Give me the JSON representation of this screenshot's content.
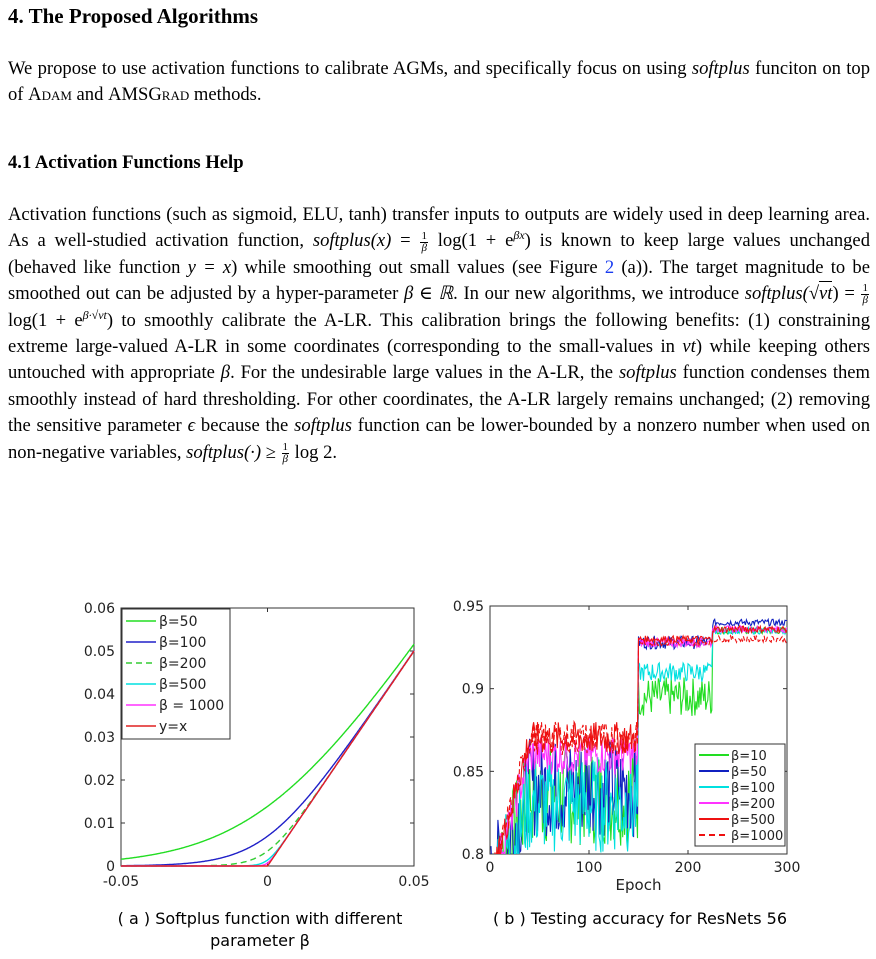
{
  "section": {
    "heading": "4. The Proposed Algorithms",
    "intro": {
      "p1": "We propose to use activation functions to calibrate AGMs, and specifically focus on using",
      "softplus": "softplus",
      "p2": " funciton on top of ",
      "adam": "Adam",
      "p3": " and ",
      "amsgrad": "AMSGrad",
      "p4": " methods."
    }
  },
  "subsection": {
    "heading": "4.1 Activation Functions Help",
    "body": {
      "s1": "Activation functions (such as sigmoid, ELU, tanh) transfer inputs to outputs are widely used in deep learning area. As a well-studied activation function, ",
      "softplus_x": "softplus(x)",
      "eq1": " = ",
      "log1": " log(1 + e",
      "beta_x": "βx",
      "s2": ") is known to keep large values unchanged (behaved like function ",
      "y_eq_x": "y = x",
      "s3": ") while smoothing out small values (see Figure ",
      "fig_ref": "2",
      "s4": " (a)). The target magnitude to be smoothed out can be adjusted by a hyper-parameter ",
      "beta_in_R": "β ∈ ℝ",
      "s5": ". In our new algorithms, we introduce ",
      "softplus_sqrt": "softplus(",
      "vt": "vt",
      "s6": ") = ",
      "log2": " log(1 + e",
      "beta_sqrt": "β·√vt",
      "s7": ") to smoothly calibrate the A-LR. This calibration brings the following benefits: (1) constraining extreme large-valued A-LR in some coordinates (corresponding to the small-values in ",
      "vt2": "vt",
      "s8": ") while keeping others untouched with appropriate ",
      "beta": "β",
      "s9": ". For the undesirable large values in the A-LR, the ",
      "softplus_word": "softplus",
      "s10": " function condenses them smoothly instead of hard thresholding. For other coordinates, the A-LR largely remains unchanged; (2) removing the sensitive parameter ",
      "epsilon": "ϵ",
      "s11": " because the ",
      "softplus_word2": "softplus",
      "s12": " function can be lower-bounded by a nonzero number when used on non-negative variables, ",
      "softplus_dot": "softplus(·) ≥ ",
      "log3": " log 2.",
      "frac_num": "1",
      "frac_den": "β"
    }
  },
  "figure_a": {
    "caption_line1": "( a ) Softplus function with different",
    "caption_line2": "parameter β",
    "chart_data": {
      "type": "line",
      "xlim": [
        -0.05,
        0.05
      ],
      "ylim": [
        0,
        0.06
      ],
      "x_ticks": [
        "-0.05",
        "0",
        "0.05"
      ],
      "y_ticks": [
        "0",
        "0.01",
        "0.02",
        "0.03",
        "0.04",
        "0.05",
        "0.06"
      ],
      "legend_position": "top-left",
      "grid": false,
      "series": [
        {
          "name": "β=50",
          "beta": 50,
          "color": "#22dd22",
          "dash": "solid"
        },
        {
          "name": "β=100",
          "beta": 100,
          "color": "#2020c8",
          "dash": "solid"
        },
        {
          "name": "β=200",
          "beta": 200,
          "color": "#33cc33",
          "dash": "dashed"
        },
        {
          "name": "β=500",
          "beta": 500,
          "color": "#00e0e0",
          "dash": "solid"
        },
        {
          "name": "β = 1000",
          "beta": 1000,
          "color": "#ff33ff",
          "dash": "solid"
        },
        {
          "name": "y=x",
          "beta": null,
          "color": "#e02020",
          "dash": "solid"
        }
      ]
    }
  },
  "figure_b": {
    "caption": "( b ) Testing accuracy for ResNets 56",
    "chart_data": {
      "type": "line",
      "xlabel": "Epoch",
      "xlim": [
        0,
        300
      ],
      "ylim": [
        0.8,
        0.95
      ],
      "x_ticks": [
        "0",
        "100",
        "200",
        "300"
      ],
      "y_ticks": [
        "0.8",
        "0.85",
        "0.9",
        "0.95"
      ],
      "legend_position": "right",
      "grid": false,
      "series": [
        {
          "name": "β=10",
          "color": "#22dd22",
          "dash": "solid",
          "phase_means": [
            0.835,
            0.895,
            0.935
          ],
          "phase_noise": [
            0.03,
            0.012,
            0.002
          ]
        },
        {
          "name": "β=50",
          "color": "#1020c0",
          "dash": "solid",
          "phase_means": [
            0.84,
            0.928,
            0.94
          ],
          "phase_noise": [
            0.03,
            0.004,
            0.002
          ]
        },
        {
          "name": "β=100",
          "color": "#00e0e0",
          "dash": "solid",
          "phase_means": [
            0.83,
            0.91,
            0.935
          ],
          "phase_noise": [
            0.03,
            0.006,
            0.002
          ]
        },
        {
          "name": "β=200",
          "color": "#ff33ff",
          "dash": "solid",
          "phase_means": [
            0.86,
            0.928,
            0.936
          ],
          "phase_noise": [
            0.012,
            0.003,
            0.002
          ]
        },
        {
          "name": "β=500",
          "color": "#ee1111",
          "dash": "solid",
          "phase_means": [
            0.87,
            0.93,
            0.936
          ],
          "phase_noise": [
            0.01,
            0.002,
            0.002
          ]
        },
        {
          "name": "β=1000",
          "color": "#ee1111",
          "dash": "dashed",
          "phase_means": [
            0.87,
            0.928,
            0.93
          ],
          "phase_noise": [
            0.01,
            0.002,
            0.002
          ]
        }
      ],
      "lr_drop_epochs": [
        150,
        225
      ]
    }
  }
}
